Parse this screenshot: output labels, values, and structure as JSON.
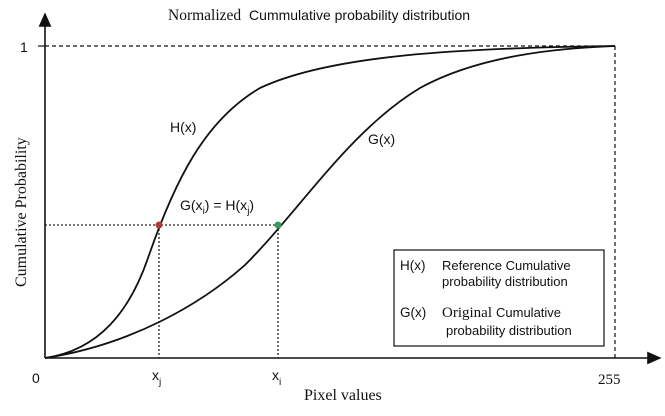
{
  "title": {
    "part1": "Normalized",
    "part2": "Cummulative probability distribution"
  },
  "y_axis": {
    "label": "Cumulative Probability",
    "tick_label": "1"
  },
  "x_axis": {
    "label": "Pixel values",
    "origin_label": "0",
    "max_label": "255",
    "marker_j": {
      "base": "x",
      "sub": "j"
    },
    "marker_i": {
      "base": "x",
      "sub": "i"
    }
  },
  "curves": {
    "h_label": "H(x)",
    "g_label": "G(x)"
  },
  "equation": {
    "g": "G(x",
    "g_sub": "i",
    "mid": ") = H(x",
    "h_sub": "j",
    "end": ")"
  },
  "legend": {
    "h_key": "H(x)",
    "h_line1": "Reference Cumulative",
    "h_line2": "probability distribution",
    "g_key": "G(x)",
    "g_line1_a": "Original",
    "g_line1_b": "Cumulative",
    "g_line2": "probability distribution"
  },
  "colors": {
    "curve": "#111111",
    "point_h": "#b03a3a",
    "point_g": "#3a9a5a",
    "axis": "#111111"
  }
}
